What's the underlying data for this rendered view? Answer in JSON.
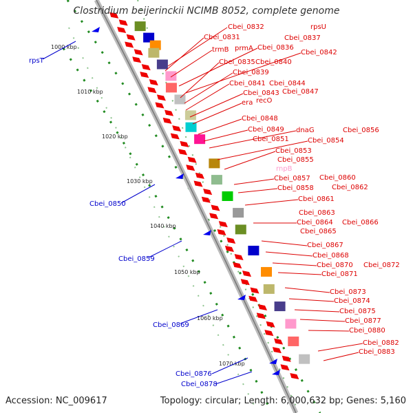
{
  "title": "Clostridium beijerinckii NCIMB 8052, complete genome",
  "footer": {
    "accession": "Accession: NC_009617",
    "summary": "Topology: circular; Length: 6,000,632 bp; Genes: 5,160"
  },
  "colors": {
    "forward_label": "#dd0000",
    "reverse_label": "#0000cc",
    "faded_label": "#ff99cc",
    "backbone": "#999999",
    "tick_dots": "#228b22"
  },
  "kbp_ticks": [
    "1000 kbp",
    "1010 kbp",
    "1020 kbp",
    "1030 kbp",
    "1040 kbp",
    "1050 kbp",
    "1060 kbp",
    "1070 kbp"
  ],
  "forward_genes": [
    "Cbei_0832",
    "Cbei_0831",
    "rpsU",
    "Cbei_0837",
    "trmB",
    "prmA",
    "Cbei_0836",
    "Cbei_0842",
    "Cbei_0835",
    "Cbei_0840",
    "Cbei_0839",
    "Cbei_0841",
    "Cbei_0844",
    "Cbei_0843",
    "Cbei_0847",
    "era",
    "recO",
    "Cbei_0848",
    "Cbei_0849",
    "dnaG",
    "Cbei_0856",
    "Cbei_0851",
    "Cbei_0854",
    "Cbei_0853",
    "Cbei_0855",
    "rnpB",
    "Cbei_0857",
    "Cbei_0860",
    "Cbei_0858",
    "Cbei_0862",
    "Cbei_0861",
    "Cbei_0863",
    "Cbei_0864",
    "Cbei_0866",
    "Cbei_0865",
    "Cbei_0867",
    "Cbei_0868",
    "Cbei_0870",
    "Cbei_0872",
    "Cbei_0871",
    "Cbei_0873",
    "Cbei_0874",
    "Cbei_0875",
    "Cbei_0877",
    "Cbei_0880",
    "Cbei_0882",
    "Cbei_0883"
  ],
  "reverse_genes": [
    "rpsT",
    "Cbei_0850",
    "Cbei_0859",
    "Cbei_0869",
    "Cbei_0876",
    "Cbei_0878"
  ]
}
